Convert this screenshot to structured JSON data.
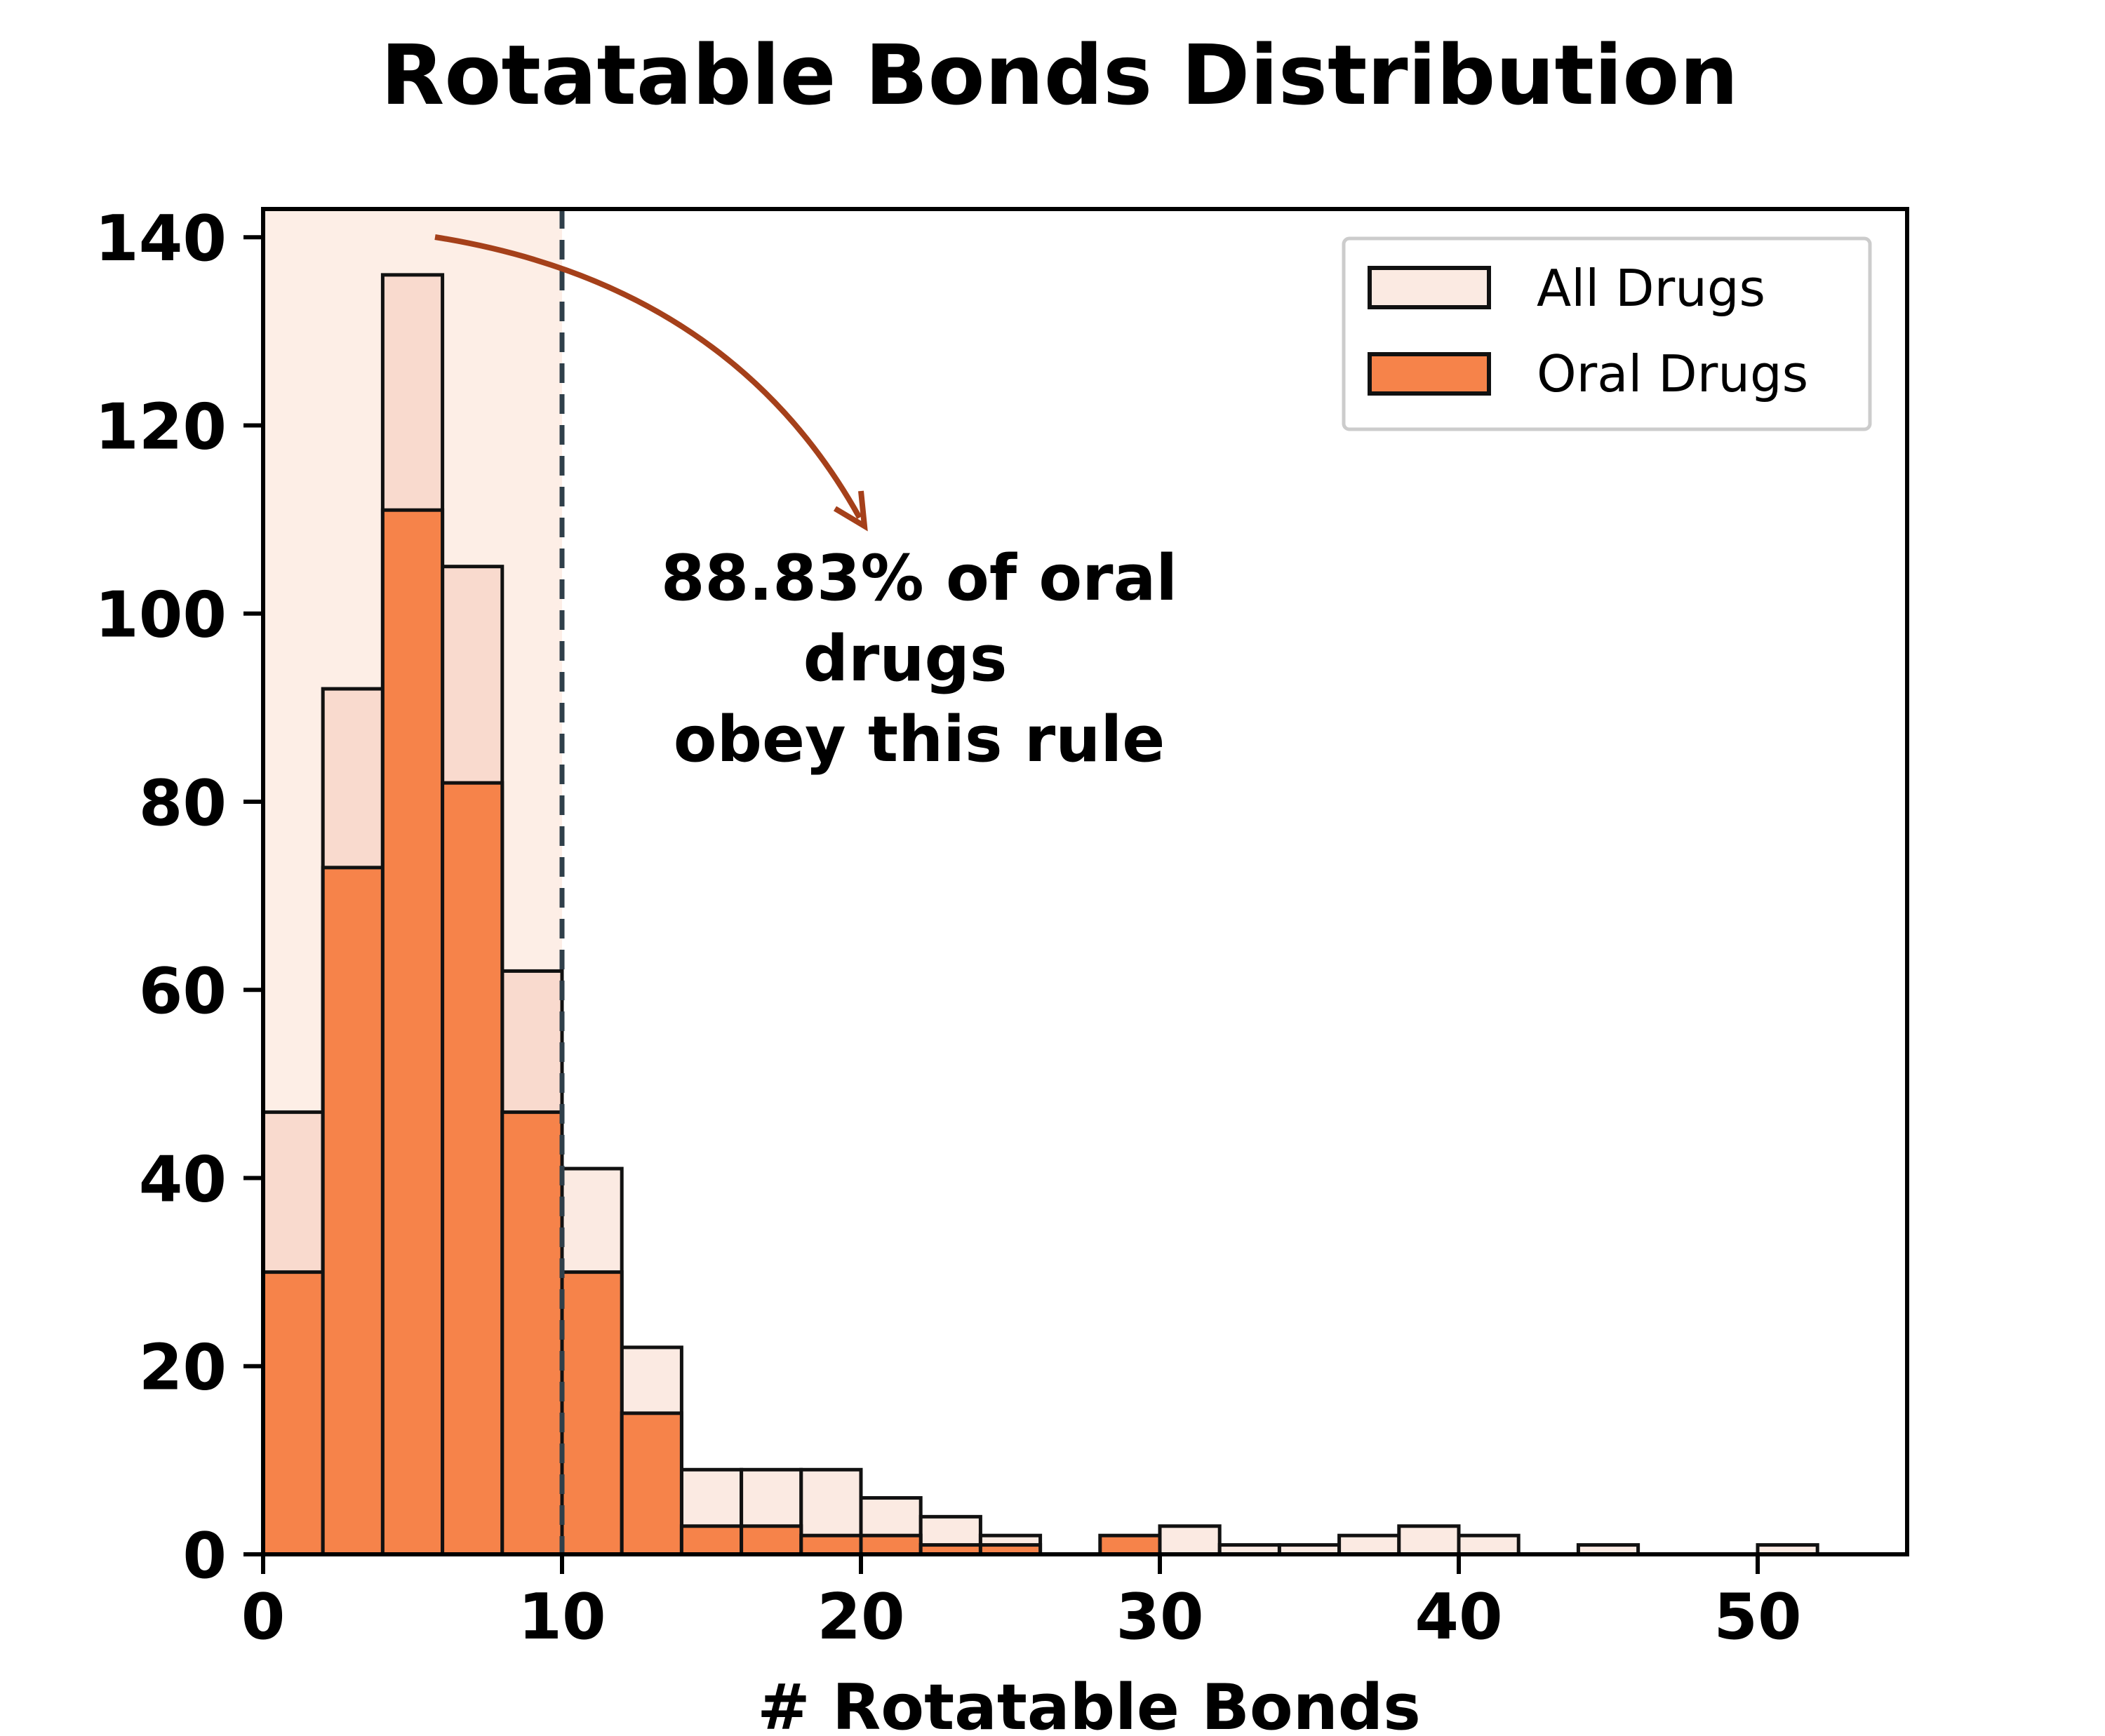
{
  "chart_data": {
    "type": "bar",
    "title": "Rotatable Bonds Distribution",
    "xlabel": "# Rotatable Bonds",
    "ylabel": "",
    "xlim": [
      0,
      55
    ],
    "ylim": [
      0,
      143
    ],
    "xticks": [
      0,
      10,
      20,
      30,
      40,
      50
    ],
    "yticks": [
      0,
      20,
      40,
      60,
      80,
      100,
      120,
      140
    ],
    "bin_width": 2,
    "bin_starts": [
      0,
      2,
      4,
      6,
      8,
      10,
      12,
      14,
      16,
      18,
      20,
      22,
      24,
      26,
      28,
      30,
      32,
      34,
      36,
      38,
      40,
      42,
      44,
      46,
      48,
      50
    ],
    "series": [
      {
        "name": "All Drugs",
        "values": [
          47,
          92,
          136,
          105,
          62,
          41,
          22,
          9,
          9,
          9,
          6,
          4,
          2,
          0,
          0,
          3,
          1,
          1,
          2,
          3,
          2,
          0,
          1,
          0,
          0,
          1
        ]
      },
      {
        "name": "Oral Drugs",
        "values": [
          30,
          73,
          111,
          82,
          47,
          30,
          15,
          3,
          3,
          2,
          2,
          1,
          1,
          0,
          2,
          0,
          0,
          0,
          0,
          0,
          0,
          0,
          0,
          0,
          0,
          0
        ]
      }
    ],
    "threshold": 10,
    "shaded_region": [
      0,
      10
    ],
    "annotation": [
      "88.83% of oral",
      "drugs",
      "obey this rule"
    ],
    "legend_position": "top-right",
    "grid": false
  },
  "colors": {
    "all_drugs": "#fbeae2",
    "all_drugs_in_region": "#f9dace",
    "oral_drugs": "#f6834a",
    "shade": "#fdeee6",
    "threshold_line": "#2f3f4a",
    "arrow": "#a5401a"
  }
}
